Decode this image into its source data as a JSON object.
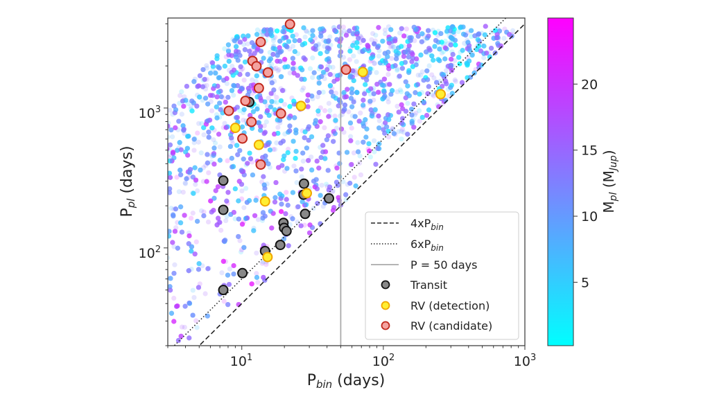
{
  "chart_data": {
    "type": "scatter",
    "xlabel": {
      "main": "P",
      "sub": "bin",
      "rest": " (days)"
    },
    "ylabel": {
      "main": "P",
      "sub": "pl",
      "rest": " (days)"
    },
    "xscale": "log",
    "yscale": "log",
    "xlim": [
      3,
      1000
    ],
    "ylim": [
      20,
      4400
    ],
    "grid": false,
    "x_ticks": [
      {
        "base": "10",
        "exp": "1",
        "value": 10
      },
      {
        "base": "10",
        "exp": "2",
        "value": 100
      },
      {
        "base": "10",
        "exp": "3",
        "value": 1000
      }
    ],
    "y_ticks": [
      {
        "base": "10",
        "exp": "2",
        "value": 100
      },
      {
        "base": "10",
        "exp": "3",
        "value": 1000
      }
    ],
    "colorbar": {
      "label": {
        "main": "M",
        "sub": "pl",
        "open": " (M",
        "sub2": "Jup",
        "close": ")"
      },
      "colormap": "cool",
      "range": [
        0.2,
        25
      ],
      "ticks": [
        "5",
        "10",
        "15",
        "20"
      ],
      "tick_values": [
        5,
        10,
        15,
        20
      ],
      "colors": [
        "#00ffff",
        "#ff00ff"
      ]
    },
    "background_population": {
      "description_shown": "simulated planets colored by M_pl",
      "opacity": 0.2
    },
    "reference_lines": [
      {
        "label": {
          "main": "4xP",
          "sub": "bin"
        },
        "style": "dashed",
        "factor": 4,
        "color": "#222222"
      },
      {
        "label": {
          "main": "6xP",
          "sub": "bin"
        },
        "style": "dotted",
        "factor": 6,
        "color": "#222222"
      },
      {
        "label": {
          "main": "P = 50 days",
          "sub": ""
        },
        "style": "solid",
        "x": 50,
        "color": "#aaaaaa"
      }
    ],
    "series": [
      {
        "name": "Transit",
        "fill": "#888888",
        "edge": "#111111",
        "points": [
          [
            11.3,
            1104
          ],
          [
            7.4,
            303
          ],
          [
            27.5,
            288
          ],
          [
            7.4,
            187
          ],
          [
            27.3,
            240
          ],
          [
            41.3,
            226
          ],
          [
            28.0,
            175
          ],
          [
            19.7,
            151
          ],
          [
            19.9,
            139
          ],
          [
            20.7,
            132
          ],
          [
            18.7,
            105
          ],
          [
            14.6,
            95
          ],
          [
            10.1,
            66
          ],
          [
            7.4,
            50
          ]
        ]
      },
      {
        "name": "RV (detection)",
        "fill": "#ffee33",
        "edge": "#f0a500",
        "points": [
          [
            26.2,
            1035
          ],
          [
            9.0,
            721
          ],
          [
            13.2,
            545
          ],
          [
            71.6,
            1808
          ],
          [
            254,
            1256
          ],
          [
            14.6,
            215
          ],
          [
            28.8,
            246
          ],
          [
            15.2,
            86
          ]
        ]
      },
      {
        "name": "RV (candidate)",
        "fill": "#f4a3a0",
        "edge": "#c0271b",
        "points": [
          [
            21.9,
            3975
          ],
          [
            13.6,
            2965
          ],
          [
            11.9,
            2170
          ],
          [
            12.7,
            1990
          ],
          [
            15.3,
            1795
          ],
          [
            13.2,
            1388
          ],
          [
            10.6,
            1125
          ],
          [
            8.1,
            955
          ],
          [
            18.9,
            913
          ],
          [
            11.7,
            796
          ],
          [
            10.1,
            605
          ],
          [
            13.6,
            394
          ],
          [
            54.5,
            1880
          ]
        ]
      }
    ]
  }
}
